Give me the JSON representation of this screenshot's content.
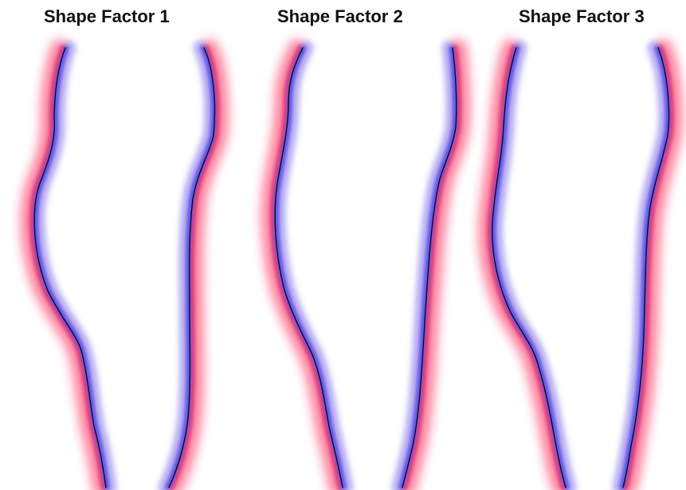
{
  "panels": [
    {
      "title": "Shape Factor 1"
    },
    {
      "title": "Shape Factor 2"
    },
    {
      "title": "Shape Factor 3"
    }
  ],
  "colors": {
    "background": "#ffffff",
    "outer_band": "#ff2a55",
    "inner_band": "#3a4cff",
    "contour": "#000000"
  }
}
